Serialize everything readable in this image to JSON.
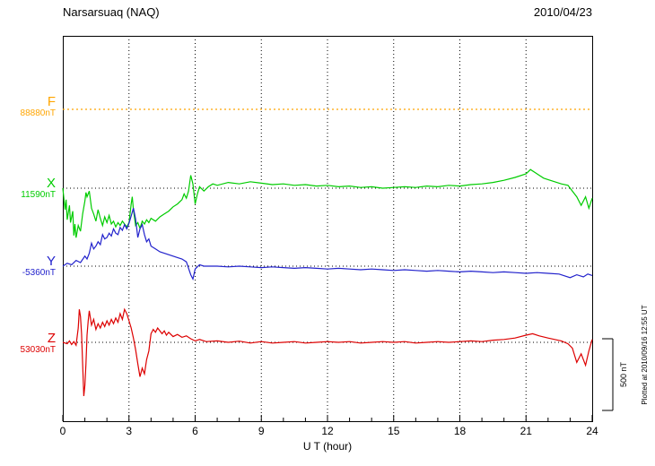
{
  "header": {
    "title": "Narsarsuaq (NAQ)",
    "date": "2010/04/23"
  },
  "left_labels": {
    "F": {
      "letter": "F",
      "value": "88880nT"
    },
    "X": {
      "letter": "X",
      "value": "11590nT"
    },
    "Y": {
      "letter": "Y",
      "value": "-5360nT"
    },
    "Z": {
      "letter": "Z",
      "value": "53030nT"
    }
  },
  "credit": "Plotted at 2010/09/16 12:55 UT",
  "chart_data": {
    "type": "line",
    "title": "Narsarsuaq (NAQ) magnetogram",
    "date": "2010/04/23",
    "xlabel": "U T (hour)",
    "x_range": [
      0,
      24
    ],
    "x_ticks": [
      0,
      3,
      6,
      9,
      12,
      15,
      18,
      21,
      24
    ],
    "grid": "dotted-vertical-at-major-ticks",
    "scale_bar_label": "500 nT",
    "scale_bar_nT": 500,
    "points_format": "[hour, nT offset from baseline]",
    "series": [
      {
        "name": "F",
        "color": "#ffa500",
        "baseline_nT": 88880,
        "unit": "nT",
        "style": "dotted",
        "points": [
          [
            0,
            0
          ],
          [
            24,
            0
          ]
        ]
      },
      {
        "name": "X",
        "color": "#00cc00",
        "baseline_nT": 11590,
        "unit": "nT",
        "style": "solid",
        "points": [
          [
            0,
            0
          ],
          [
            0.1,
            -150
          ],
          [
            0.15,
            -80
          ],
          [
            0.2,
            -220
          ],
          [
            0.3,
            -120
          ],
          [
            0.35,
            -240
          ],
          [
            0.45,
            -160
          ],
          [
            0.5,
            -330
          ],
          [
            0.55,
            -250
          ],
          [
            0.6,
            -345
          ],
          [
            0.7,
            -260
          ],
          [
            0.8,
            -300
          ],
          [
            0.9,
            -180
          ],
          [
            1,
            -90
          ],
          [
            1.05,
            -30
          ],
          [
            1.1,
            -60
          ],
          [
            1.2,
            -20
          ],
          [
            1.3,
            -140
          ],
          [
            1.4,
            -180
          ],
          [
            1.5,
            -230
          ],
          [
            1.6,
            -150
          ],
          [
            1.7,
            -210
          ],
          [
            1.8,
            -260
          ],
          [
            1.9,
            -200
          ],
          [
            2,
            -240
          ],
          [
            2.1,
            -190
          ],
          [
            2.2,
            -250
          ],
          [
            2.3,
            -230
          ],
          [
            2.4,
            -270
          ],
          [
            2.5,
            -240
          ],
          [
            2.6,
            -260
          ],
          [
            2.7,
            -230
          ],
          [
            2.8,
            -250
          ],
          [
            2.9,
            -270
          ],
          [
            3,
            -240
          ],
          [
            3.1,
            -110
          ],
          [
            3.15,
            -60
          ],
          [
            3.2,
            -150
          ],
          [
            3.3,
            -260
          ],
          [
            3.4,
            -240
          ],
          [
            3.5,
            -280
          ],
          [
            3.6,
            -230
          ],
          [
            3.7,
            -250
          ],
          [
            3.8,
            -220
          ],
          [
            3.9,
            -240
          ],
          [
            4,
            -210
          ],
          [
            4.2,
            -230
          ],
          [
            4.4,
            -200
          ],
          [
            4.6,
            -180
          ],
          [
            4.8,
            -160
          ],
          [
            5,
            -130
          ],
          [
            5.2,
            -110
          ],
          [
            5.4,
            -80
          ],
          [
            5.5,
            -40
          ],
          [
            5.6,
            -70
          ],
          [
            5.7,
            -20
          ],
          [
            5.8,
            90
          ],
          [
            5.9,
            30
          ],
          [
            6,
            -110
          ],
          [
            6.1,
            -40
          ],
          [
            6.2,
            10
          ],
          [
            6.4,
            -20
          ],
          [
            6.6,
            10
          ],
          [
            6.8,
            30
          ],
          [
            7,
            20
          ],
          [
            7.5,
            40
          ],
          [
            8,
            30
          ],
          [
            8.5,
            45
          ],
          [
            9,
            35
          ],
          [
            9.5,
            25
          ],
          [
            10,
            30
          ],
          [
            10.5,
            20
          ],
          [
            11,
            25
          ],
          [
            11.5,
            15
          ],
          [
            12,
            20
          ],
          [
            12.5,
            10
          ],
          [
            13,
            15
          ],
          [
            13.5,
            5
          ],
          [
            14,
            10
          ],
          [
            14.5,
            0
          ],
          [
            15,
            5
          ],
          [
            15.5,
            10
          ],
          [
            16,
            5
          ],
          [
            16.5,
            15
          ],
          [
            17,
            10
          ],
          [
            17.5,
            20
          ],
          [
            18,
            15
          ],
          [
            18.5,
            25
          ],
          [
            19,
            30
          ],
          [
            19.5,
            40
          ],
          [
            20,
            55
          ],
          [
            20.5,
            75
          ],
          [
            21,
            100
          ],
          [
            21.2,
            130
          ],
          [
            21.4,
            110
          ],
          [
            21.6,
            90
          ],
          [
            21.8,
            70
          ],
          [
            22,
            60
          ],
          [
            22.3,
            45
          ],
          [
            22.6,
            30
          ],
          [
            22.9,
            20
          ],
          [
            23.1,
            -20
          ],
          [
            23.3,
            -60
          ],
          [
            23.5,
            -120
          ],
          [
            23.7,
            -60
          ],
          [
            23.85,
            -140
          ],
          [
            24,
            -70
          ]
        ]
      },
      {
        "name": "Y",
        "color": "#2222cc",
        "baseline_nT": -5360,
        "unit": "nT",
        "style": "solid",
        "points": [
          [
            0,
            0
          ],
          [
            0.2,
            20
          ],
          [
            0.4,
            10
          ],
          [
            0.6,
            40
          ],
          [
            0.8,
            25
          ],
          [
            1,
            70
          ],
          [
            1.1,
            50
          ],
          [
            1.2,
            90
          ],
          [
            1.3,
            160
          ],
          [
            1.4,
            120
          ],
          [
            1.5,
            140
          ],
          [
            1.6,
            170
          ],
          [
            1.7,
            150
          ],
          [
            1.8,
            220
          ],
          [
            1.9,
            190
          ],
          [
            2,
            200
          ],
          [
            2.1,
            230
          ],
          [
            2.2,
            210
          ],
          [
            2.3,
            260
          ],
          [
            2.4,
            230
          ],
          [
            2.5,
            220
          ],
          [
            2.6,
            270
          ],
          [
            2.7,
            250
          ],
          [
            2.8,
            290
          ],
          [
            2.9,
            260
          ],
          [
            3,
            300
          ],
          [
            3.1,
            350
          ],
          [
            3.2,
            405
          ],
          [
            3.3,
            330
          ],
          [
            3.4,
            200
          ],
          [
            3.5,
            260
          ],
          [
            3.6,
            290
          ],
          [
            3.7,
            220
          ],
          [
            3.8,
            170
          ],
          [
            3.9,
            190
          ],
          [
            4,
            140
          ],
          [
            4.2,
            120
          ],
          [
            4.4,
            100
          ],
          [
            4.6,
            90
          ],
          [
            4.8,
            80
          ],
          [
            5,
            70
          ],
          [
            5.2,
            60
          ],
          [
            5.4,
            50
          ],
          [
            5.6,
            30
          ],
          [
            5.8,
            -60
          ],
          [
            5.9,
            -90
          ],
          [
            6,
            -20
          ],
          [
            6.2,
            10
          ],
          [
            6.4,
            0
          ],
          [
            7,
            0
          ],
          [
            7.5,
            -5
          ],
          [
            8,
            0
          ],
          [
            8.5,
            -5
          ],
          [
            9,
            -10
          ],
          [
            9.5,
            -5
          ],
          [
            10,
            -10
          ],
          [
            10.5,
            -15
          ],
          [
            11,
            -10
          ],
          [
            11.5,
            -15
          ],
          [
            12,
            -20
          ],
          [
            12.5,
            -15
          ],
          [
            13,
            -20
          ],
          [
            13.5,
            -25
          ],
          [
            14,
            -20
          ],
          [
            14.5,
            -25
          ],
          [
            15,
            -30
          ],
          [
            15.5,
            -25
          ],
          [
            16,
            -30
          ],
          [
            16.5,
            -35
          ],
          [
            17,
            -30
          ],
          [
            17.5,
            -35
          ],
          [
            18,
            -40
          ],
          [
            18.5,
            -35
          ],
          [
            19,
            -40
          ],
          [
            19.5,
            -45
          ],
          [
            20,
            -40
          ],
          [
            20.5,
            -45
          ],
          [
            21,
            -50
          ],
          [
            21.5,
            -45
          ],
          [
            22,
            -50
          ],
          [
            22.5,
            -55
          ],
          [
            23,
            -80
          ],
          [
            23.3,
            -60
          ],
          [
            23.6,
            -75
          ],
          [
            23.8,
            -55
          ],
          [
            24,
            -65
          ]
        ]
      },
      {
        "name": "Z",
        "color": "#dd0000",
        "baseline_nT": 53030,
        "unit": "nT",
        "style": "solid",
        "points": [
          [
            0,
            0
          ],
          [
            0.2,
            -10
          ],
          [
            0.3,
            10
          ],
          [
            0.4,
            -15
          ],
          [
            0.5,
            5
          ],
          [
            0.6,
            -20
          ],
          [
            0.7,
            100
          ],
          [
            0.75,
            230
          ],
          [
            0.8,
            180
          ],
          [
            0.85,
            60
          ],
          [
            0.9,
            -150
          ],
          [
            0.95,
            -375
          ],
          [
            1,
            -300
          ],
          [
            1.05,
            -150
          ],
          [
            1.1,
            50
          ],
          [
            1.15,
            150
          ],
          [
            1.2,
            220
          ],
          [
            1.3,
            120
          ],
          [
            1.4,
            160
          ],
          [
            1.5,
            90
          ],
          [
            1.6,
            130
          ],
          [
            1.7,
            100
          ],
          [
            1.8,
            140
          ],
          [
            1.9,
            110
          ],
          [
            2,
            150
          ],
          [
            2.1,
            120
          ],
          [
            2.2,
            160
          ],
          [
            2.3,
            130
          ],
          [
            2.4,
            170
          ],
          [
            2.5,
            140
          ],
          [
            2.6,
            200
          ],
          [
            2.7,
            160
          ],
          [
            2.8,
            230
          ],
          [
            2.9,
            200
          ],
          [
            3,
            150
          ],
          [
            3.1,
            100
          ],
          [
            3.2,
            30
          ],
          [
            3.3,
            -50
          ],
          [
            3.4,
            -150
          ],
          [
            3.5,
            -240
          ],
          [
            3.6,
            -180
          ],
          [
            3.7,
            -220
          ],
          [
            3.8,
            -120
          ],
          [
            3.9,
            -60
          ],
          [
            4,
            60
          ],
          [
            4.1,
            90
          ],
          [
            4.2,
            70
          ],
          [
            4.3,
            100
          ],
          [
            4.4,
            80
          ],
          [
            4.5,
            60
          ],
          [
            4.6,
            80
          ],
          [
            4.7,
            50
          ],
          [
            4.8,
            70
          ],
          [
            5,
            40
          ],
          [
            5.2,
            55
          ],
          [
            5.4,
            35
          ],
          [
            5.6,
            45
          ],
          [
            5.8,
            25
          ],
          [
            6,
            10
          ],
          [
            6.2,
            20
          ],
          [
            6.5,
            5
          ],
          [
            7,
            10
          ],
          [
            7.5,
            0
          ],
          [
            8,
            8
          ],
          [
            8.5,
            -5
          ],
          [
            9,
            5
          ],
          [
            9.5,
            -5
          ],
          [
            10,
            0
          ],
          [
            10.5,
            5
          ],
          [
            11,
            -5
          ],
          [
            11.5,
            0
          ],
          [
            12,
            5
          ],
          [
            12.5,
            0
          ],
          [
            13,
            5
          ],
          [
            13.5,
            -5
          ],
          [
            14,
            0
          ],
          [
            14.5,
            5
          ],
          [
            15,
            0
          ],
          [
            15.5,
            5
          ],
          [
            16,
            -5
          ],
          [
            16.5,
            0
          ],
          [
            17,
            5
          ],
          [
            17.5,
            0
          ],
          [
            18,
            5
          ],
          [
            18.5,
            10
          ],
          [
            19,
            5
          ],
          [
            19.5,
            15
          ],
          [
            20,
            20
          ],
          [
            20.5,
            30
          ],
          [
            21,
            50
          ],
          [
            21.3,
            60
          ],
          [
            21.6,
            45
          ],
          [
            22,
            30
          ],
          [
            22.3,
            20
          ],
          [
            22.6,
            10
          ],
          [
            22.9,
            -10
          ],
          [
            23.1,
            -40
          ],
          [
            23.3,
            -140
          ],
          [
            23.5,
            -80
          ],
          [
            23.7,
            -160
          ],
          [
            23.85,
            -60
          ],
          [
            24,
            20
          ]
        ]
      }
    ]
  }
}
